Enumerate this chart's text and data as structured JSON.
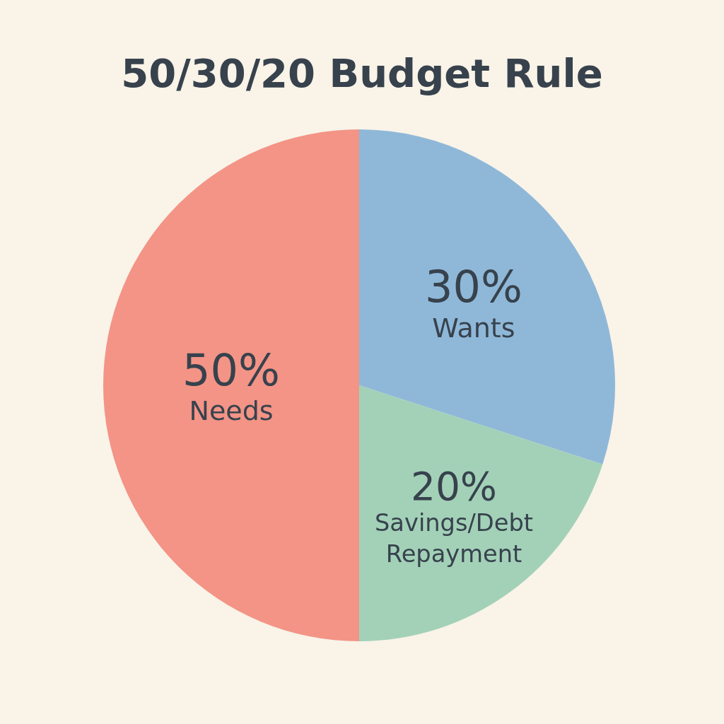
{
  "chart_data": {
    "type": "pie",
    "title": "50/30/20 Budget Rule",
    "categories": [
      "Needs",
      "Wants",
      "Savings/Debt Repayment"
    ],
    "values": [
      50,
      30,
      20
    ],
    "value_labels": [
      "50%",
      "30%",
      "20%"
    ],
    "colors": [
      "#f39486",
      "#8fb8d8",
      "#a3d1b8"
    ]
  }
}
